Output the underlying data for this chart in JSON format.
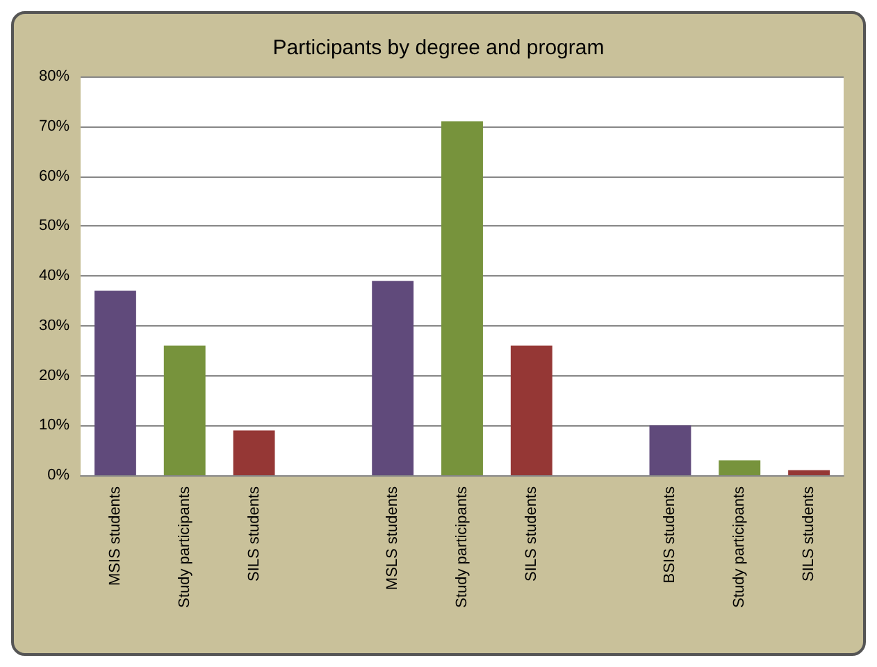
{
  "chart_data": {
    "type": "bar",
    "title": "Participants by degree and program",
    "categories": [
      "MSIS students",
      "Study participants",
      "SILS students",
      null,
      "MSLS students",
      "Study participants",
      "SILS students",
      null,
      "BSIS students",
      "Study participants",
      "SILS students"
    ],
    "values": [
      37,
      26,
      9,
      null,
      39,
      71,
      26,
      null,
      10,
      3,
      1
    ],
    "colors": [
      "#604a7b",
      "#77933c",
      "#953735",
      null,
      "#604a7b",
      "#77933c",
      "#953735",
      null,
      "#604a7b",
      "#77933c",
      "#953735"
    ],
    "ylim": [
      0,
      80
    ],
    "yticks": [
      {
        "value": 0,
        "label": "0%"
      },
      {
        "value": 10,
        "label": "10%"
      },
      {
        "value": 20,
        "label": "20%"
      },
      {
        "value": 30,
        "label": "30%"
      },
      {
        "value": 40,
        "label": "40%"
      },
      {
        "value": 50,
        "label": "50%"
      },
      {
        "value": 60,
        "label": "60%"
      },
      {
        "value": 70,
        "label": "70%"
      },
      {
        "value": 80,
        "label": "80%"
      }
    ],
    "grid": "y"
  }
}
